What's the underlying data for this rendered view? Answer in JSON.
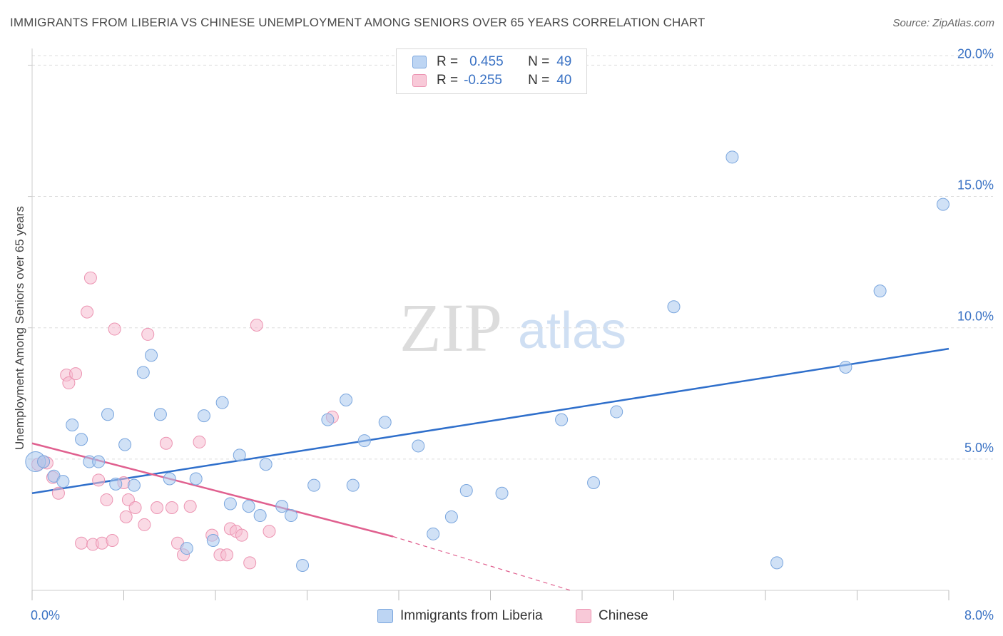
{
  "title": "IMMIGRANTS FROM LIBERIA VS CHINESE UNEMPLOYMENT AMONG SENIORS OVER 65 YEARS CORRELATION CHART",
  "source": "Source: ZipAtlas.com",
  "watermark": {
    "zip": "ZIP",
    "atlas": "atlas"
  },
  "legend": {
    "rows": [
      {
        "r_label": "R =",
        "r_value": "0.455",
        "n_label": "N =",
        "n_value": "49"
      },
      {
        "r_label": "R =",
        "r_value": "-0.255",
        "n_label": "N =",
        "n_value": "40"
      }
    ]
  },
  "bottom_legend": {
    "series1": "Immigrants from Liberia",
    "series2": "Chinese"
  },
  "colors": {
    "blue_fill": "#a9c8ef",
    "blue_stroke": "#7aa6de",
    "blue_line": "#2f6fcb",
    "pink_fill": "#f6bcd0",
    "pink_stroke": "#ec94b2",
    "pink_line": "#e0608f",
    "axis_text": "#3a72c4",
    "grid": "#dddddd"
  },
  "chart_data": {
    "type": "scatter",
    "title": "IMMIGRANTS FROM LIBERIA VS CHINESE UNEMPLOYMENT AMONG SENIORS OVER 65 YEARS CORRELATION CHART",
    "xlabel": "",
    "ylabel": "Unemployment Among Seniors over 65 years",
    "xlim": [
      0,
      8
    ],
    "ylim": [
      0,
      20.5
    ],
    "x_tick_labels": [
      "0.0%",
      "8.0%"
    ],
    "y_ticks": [
      5,
      10,
      15,
      20
    ],
    "y_tick_labels": [
      "5.0%",
      "10.0%",
      "15.0%",
      "20.0%"
    ],
    "grid": true,
    "legend_position": "top-center",
    "series": [
      {
        "name": "Immigrants from Liberia",
        "R": 0.455,
        "N": 49,
        "trend": {
          "x": [
            0,
            8
          ],
          "y": [
            3.7,
            9.2
          ]
        },
        "points": [
          [
            0.03,
            4.9
          ],
          [
            0.1,
            4.9
          ],
          [
            0.19,
            4.35
          ],
          [
            0.27,
            4.15
          ],
          [
            0.35,
            6.3
          ],
          [
            0.43,
            5.75
          ],
          [
            0.5,
            4.9
          ],
          [
            0.58,
            4.9
          ],
          [
            0.66,
            6.7
          ],
          [
            0.73,
            4.05
          ],
          [
            0.81,
            5.55
          ],
          [
            0.89,
            4.0
          ],
          [
            0.97,
            8.3
          ],
          [
            1.04,
            8.95
          ],
          [
            1.12,
            6.7
          ],
          [
            1.2,
            4.25
          ],
          [
            1.35,
            1.6
          ],
          [
            1.43,
            4.25
          ],
          [
            1.5,
            6.65
          ],
          [
            1.58,
            1.9
          ],
          [
            1.66,
            7.15
          ],
          [
            1.73,
            3.3
          ],
          [
            1.81,
            5.15
          ],
          [
            1.89,
            3.2
          ],
          [
            1.99,
            2.85
          ],
          [
            2.04,
            4.8
          ],
          [
            2.18,
            3.2
          ],
          [
            2.26,
            2.85
          ],
          [
            2.36,
            0.95
          ],
          [
            2.46,
            4.0
          ],
          [
            2.58,
            6.5
          ],
          [
            2.74,
            7.25
          ],
          [
            2.8,
            4.0
          ],
          [
            2.9,
            5.7
          ],
          [
            3.08,
            6.4
          ],
          [
            3.37,
            5.5
          ],
          [
            3.5,
            2.15
          ],
          [
            3.66,
            2.8
          ],
          [
            3.79,
            3.8
          ],
          [
            4.1,
            3.7
          ],
          [
            4.62,
            6.5
          ],
          [
            4.9,
            4.1
          ],
          [
            5.1,
            6.8
          ],
          [
            5.6,
            10.8
          ],
          [
            6.11,
            16.5
          ],
          [
            6.5,
            1.05
          ],
          [
            7.1,
            8.5
          ],
          [
            7.4,
            11.4
          ],
          [
            7.95,
            14.7
          ]
        ]
      },
      {
        "name": "Chinese",
        "R": -0.255,
        "N": 40,
        "trend": {
          "x": [
            0,
            3.15
          ],
          "y": [
            5.6,
            2.05
          ]
        },
        "trend_dashed": {
          "x": [
            3.15,
            4.7
          ],
          "y": [
            2.05,
            0
          ]
        },
        "points": [
          [
            0.05,
            4.8
          ],
          [
            0.13,
            4.85
          ],
          [
            0.18,
            4.3
          ],
          [
            0.23,
            3.7
          ],
          [
            0.3,
            8.2
          ],
          [
            0.32,
            7.9
          ],
          [
            0.38,
            8.25
          ],
          [
            0.43,
            1.8
          ],
          [
            0.48,
            10.6
          ],
          [
            0.51,
            11.9
          ],
          [
            0.53,
            1.75
          ],
          [
            0.58,
            4.2
          ],
          [
            0.61,
            1.8
          ],
          [
            0.65,
            3.45
          ],
          [
            0.7,
            1.9
          ],
          [
            0.72,
            9.95
          ],
          [
            0.8,
            4.1
          ],
          [
            0.82,
            2.8
          ],
          [
            0.84,
            3.45
          ],
          [
            0.9,
            3.15
          ],
          [
            0.98,
            2.5
          ],
          [
            1.01,
            9.75
          ],
          [
            1.09,
            3.15
          ],
          [
            1.17,
            5.6
          ],
          [
            1.22,
            3.15
          ],
          [
            1.27,
            1.8
          ],
          [
            1.32,
            1.35
          ],
          [
            1.38,
            3.2
          ],
          [
            1.46,
            5.65
          ],
          [
            1.57,
            2.1
          ],
          [
            1.64,
            1.35
          ],
          [
            1.7,
            1.35
          ],
          [
            1.73,
            2.35
          ],
          [
            1.78,
            2.25
          ],
          [
            1.83,
            2.1
          ],
          [
            1.9,
            1.05
          ],
          [
            1.96,
            10.1
          ],
          [
            2.07,
            2.25
          ],
          [
            2.62,
            6.6
          ],
          [
            0.1,
            4.9
          ]
        ]
      }
    ]
  }
}
